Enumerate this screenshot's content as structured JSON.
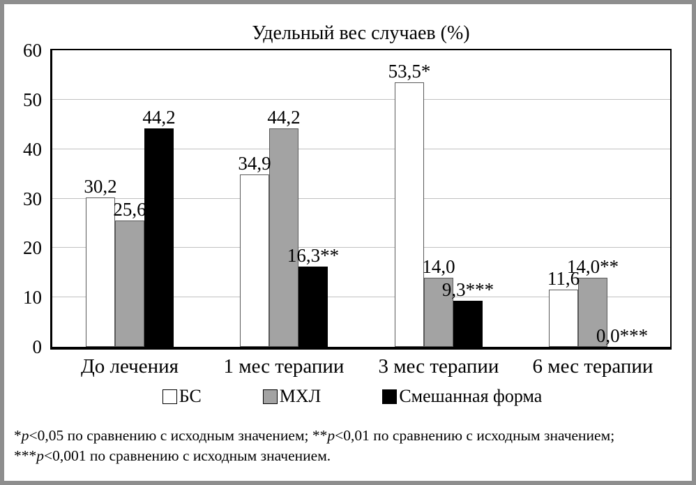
{
  "chart_data": {
    "type": "bar",
    "title": "Удельный вес случаев (%)",
    "categories": [
      "До лечения",
      "1 мес терапии",
      "3 мес терапии",
      "6 мес терапии"
    ],
    "series": [
      {
        "name": "БС",
        "color": "#ffffff",
        "border_color": "#595959",
        "values": [
          30.2,
          34.9,
          53.5,
          11.6
        ],
        "labels": [
          "30,2",
          "34,9",
          "53,5*",
          "11,6"
        ]
      },
      {
        "name": "МХЛ",
        "color": "#a3a3a3",
        "border_color": "#595959",
        "values": [
          25.6,
          44.2,
          14.0,
          14.0
        ],
        "labels": [
          "25,6",
          "44,2",
          "14,0",
          "14,0**"
        ]
      },
      {
        "name": "Смешанная форма",
        "color": "#000000",
        "border_color": "#000000",
        "values": [
          44.2,
          16.3,
          9.3,
          0.0
        ],
        "labels": [
          "44,2",
          "16,3**",
          "9,3***",
          "0,0***"
        ]
      }
    ],
    "y_axis": {
      "min": 0,
      "max": 60,
      "step": 10,
      "tick_labels": [
        "0",
        "10",
        "20",
        "30",
        "40",
        "50",
        "60"
      ]
    },
    "grid": true,
    "legend_position": "bottom"
  },
  "footnote": {
    "lines": [
      [
        {
          "text": "*"
        },
        {
          "text": "p",
          "italic": true
        },
        {
          "text": "<0,05 по сравнению с исходным значением; "
        },
        {
          "text": "**"
        },
        {
          "text": "p",
          "italic": true
        },
        {
          "text": "<0,01 по сравнению с исходным значением;"
        }
      ],
      [
        {
          "text": "***"
        },
        {
          "text": "p",
          "italic": true
        },
        {
          "text": "<0,001 по сравнению с исходным значением."
        }
      ]
    ]
  }
}
